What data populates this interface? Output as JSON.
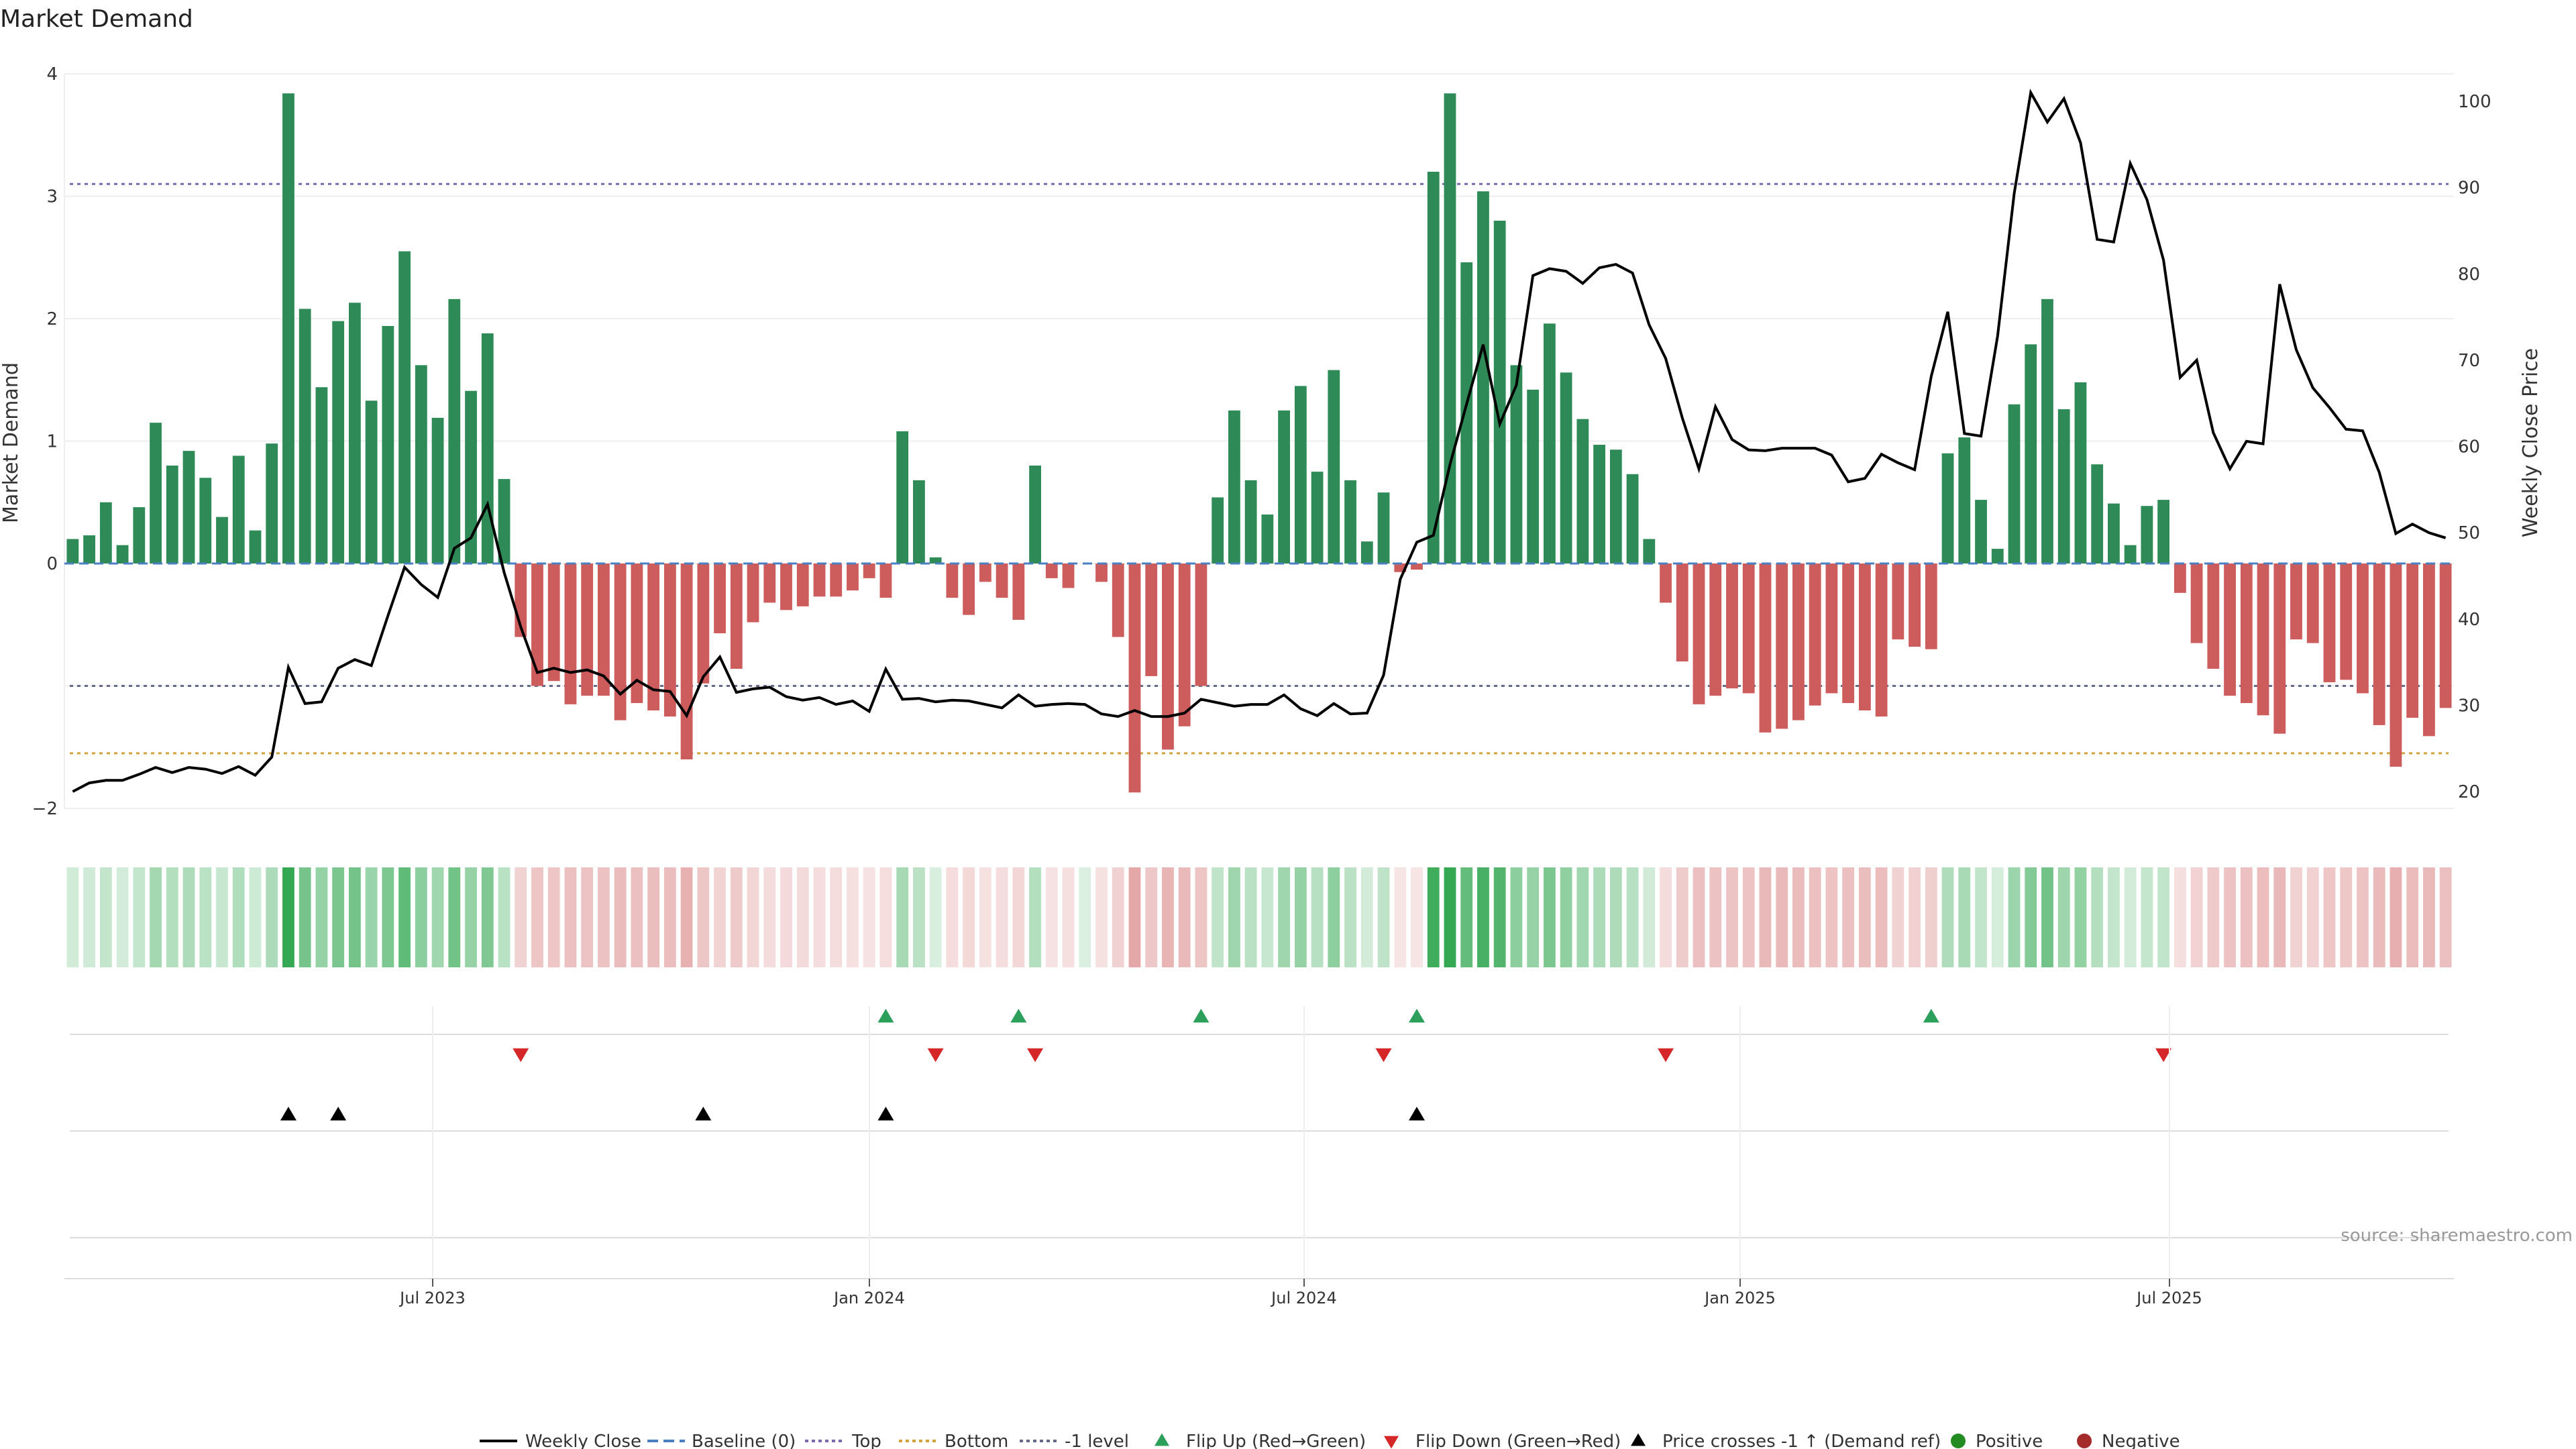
{
  "chart_data": {
    "type": "bar",
    "title": "Market Demand",
    "ylabel": "Market Demand",
    "y2label": "Weekly Close Price",
    "ylim": [
      -2,
      4
    ],
    "y2lim": [
      20,
      100
    ],
    "yticks": [
      "4",
      "3",
      "2",
      "1",
      "0",
      "−2"
    ],
    "y2ticks": [
      "100",
      "90",
      "80",
      "70",
      "60",
      "50",
      "40",
      "30",
      "20"
    ],
    "xticks": [
      "Jul 2023",
      "Jan 2024",
      "Jul 2024",
      "Jan 2025",
      "Jul 2025"
    ],
    "levels": {
      "top": 3.1,
      "bottom": -1.55,
      "minus_one": -1
    },
    "source": "source: sharemaestro.com",
    "colors": {
      "positive": "#2e8b57",
      "negative": "#cd5c5c",
      "price": "#000000",
      "top": "#7b68ae",
      "bottom": "#d4a23b",
      "minus_one": "#666a8a",
      "flip_up": "#2ca05a",
      "flip_down": "#d62728",
      "cross": "#000000",
      "legend_positive": "#228b22",
      "legend_negative": "#a52a2a",
      "baseline": "#4a7fc1"
    },
    "demand": [
      0.2,
      0.23,
      0.5,
      0.15,
      0.46,
      1.15,
      0.8,
      0.92,
      0.7,
      0.38,
      0.88,
      0.27,
      0.98,
      3.84,
      2.08,
      1.44,
      1.98,
      2.13,
      1.33,
      1.94,
      2.55,
      1.62,
      1.19,
      2.16,
      1.41,
      1.88,
      0.69,
      -0.6,
      -1,
      -0.96,
      -1.15,
      -1.08,
      -1.08,
      -1.28,
      -1.14,
      -1.2,
      -1.25,
      -1.6,
      -0.98,
      -0.57,
      -0.86,
      -0.48,
      -0.32,
      -0.38,
      -0.35,
      -0.27,
      -0.27,
      -0.22,
      -0.12,
      -0.28,
      1.08,
      0.68,
      0.05,
      -0.28,
      -0.42,
      -0.15,
      -0.28,
      -0.46,
      0.8,
      -0.12,
      -0.2,
      0,
      -0.15,
      -0.6,
      -1.87,
      -0.92,
      -1.52,
      -1.33,
      -1,
      0.54,
      1.25,
      0.68,
      0.4,
      1.25,
      1.45,
      0.75,
      1.58,
      0.68,
      0.18,
      0.58,
      -0.07,
      -0.05,
      3.2,
      3.84,
      2.46,
      3.04,
      2.8,
      1.62,
      1.42,
      1.96,
      1.56,
      1.18,
      0.97,
      0.93,
      0.73,
      0.2,
      -0.32,
      -0.8,
      -1.15,
      -1.08,
      -1.02,
      -1.06,
      -1.38,
      -1.35,
      -1.28,
      -1.16,
      -1.06,
      -1.14,
      -1.2,
      -1.25,
      -0.62,
      -0.68,
      -0.7,
      0.9,
      1.03,
      0.52,
      0.12,
      1.3,
      1.79,
      2.16,
      1.26,
      1.48,
      0.81,
      0.49,
      0.15,
      0.47,
      0.52,
      -0.24,
      -0.65,
      -0.86,
      -1.08,
      -1.14,
      -1.24,
      -1.39,
      -0.62,
      -0.65,
      -0.97,
      -0.95,
      -1.06,
      -1.32,
      -1.66,
      -1.26,
      -1.41,
      -1.18
    ],
    "price": [
      20,
      21,
      21.3,
      21.3,
      22,
      22.8,
      22.2,
      22.8,
      22.6,
      22.1,
      22.9,
      21.9,
      24,
      34.4,
      30.2,
      30.4,
      34.3,
      35.3,
      34.6,
      40.4,
      46,
      44,
      42.5,
      48.2,
      49.4,
      53.3,
      45.4,
      39.1,
      33.8,
      34.3,
      33.8,
      34.1,
      33.4,
      31.3,
      32.9,
      31.8,
      31.6,
      28.8,
      33.3,
      35.6,
      31.5,
      31.9,
      32.1,
      31,
      30.6,
      30.9,
      30.1,
      30.5,
      29.3,
      34.2,
      30.7,
      30.8,
      30.4,
      30.6,
      30.5,
      30.1,
      29.7,
      31.2,
      29.9,
      30.1,
      30.2,
      30.1,
      29,
      28.7,
      29.4,
      28.7,
      28.7,
      29.1,
      30.7,
      30.3,
      29.9,
      30.1,
      30.1,
      31.2,
      29.6,
      28.8,
      30.2,
      29,
      29.1,
      33.5,
      44.6,
      48.9,
      49.7,
      57.9,
      64.9,
      71.8,
      62.6,
      67.1,
      79.8,
      80.6,
      80.3,
      78.9,
      80.7,
      81.1,
      80.1,
      74.1,
      70.2,
      63.3,
      57.4,
      64.6,
      60.8,
      59.6,
      59.5,
      59.8,
      59.8,
      59.8,
      59,
      55.9,
      56.3,
      59.1,
      58.1,
      57.3,
      68.1,
      75.6,
      61.5,
      61.2,
      72.8,
      89.3,
      101,
      97.6,
      100.3,
      95.2,
      84,
      83.7,
      92.8,
      88.6,
      81.6,
      68,
      70,
      61.6,
      57.4,
      60.6,
      60.3,
      78.8,
      71.2,
      66.8,
      64.5,
      62,
      61.8,
      57,
      49.9,
      51,
      50,
      49.4
    ],
    "flip_up_weeks": [
      49,
      57,
      68,
      81,
      112
    ],
    "flip_down_weeks": [
      27,
      52,
      58,
      79,
      96,
      126
    ],
    "cross_up_weeks": [
      13,
      16,
      38,
      49,
      81
    ],
    "legend": [
      "Weekly Close",
      "Baseline (0)",
      "Top",
      "Bottom",
      "-1 level",
      "Flip Up (Red→Green)",
      "Flip Down (Green→Red)",
      "Price crosses -1 ↑ (Demand ref)",
      "Positive",
      "Negative"
    ]
  }
}
